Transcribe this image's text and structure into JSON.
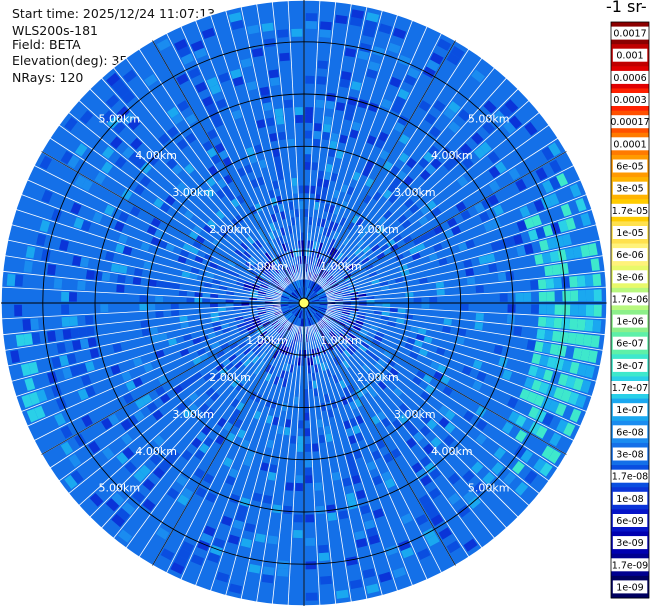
{
  "info": {
    "start_time": "Start time: 2025/12/24 11:07:13",
    "instrument": "WLS200s-181",
    "field": "Field: BETA",
    "elevation": "Elevation(deg): 35.00",
    "nrays": "NRays: 120"
  },
  "colorbar": {
    "title": "-1 sr-",
    "labels": [
      "0.0017",
      "0.001",
      "0.0006",
      "0.0003",
      "0.00017",
      "0.0001",
      "6e-05",
      "3e-05",
      "1.7e-05",
      "1e-05",
      "6e-06",
      "3e-06",
      "1.7e-06",
      "1e-06",
      "6e-07",
      "3e-07",
      "1.7e-07",
      "1e-07",
      "6e-08",
      "3e-08",
      "1.7e-08",
      "1e-08",
      "6e-09",
      "3e-09",
      "1.7e-09",
      "1e-09"
    ],
    "colors": [
      "#8b0000",
      "#c00000",
      "#e00000",
      "#ff2000",
      "#ff5000",
      "#ff7a00",
      "#ff9a00",
      "#ffb300",
      "#ffcc00",
      "#ffe14d",
      "#fff27a",
      "#e8f96a",
      "#b8f87e",
      "#8cf08a",
      "#5ef0a8",
      "#3ee8cc",
      "#2ad0e8",
      "#1aa8f0",
      "#1a8cf0",
      "#1470e8",
      "#0a4ee0",
      "#0a34d8",
      "#0614c8",
      "#0000b0",
      "#000090",
      "#000060"
    ]
  },
  "chart_data": {
    "type": "heatmap",
    "projection": "polar PPI scan",
    "field": "BETA",
    "elevation_deg": 35.0,
    "n_rays": 120,
    "range_rings_km": [
      1,
      2,
      3,
      4,
      5
    ],
    "range_ring_labels": [
      "1.00km",
      "2.00km",
      "3.00km",
      "4.00km",
      "5.00km"
    ],
    "max_range_km": 5.8,
    "colorscale": "log",
    "value_range": [
      1e-09,
      0.0017
    ],
    "dominant_value": 3e-08,
    "enhanced_sector": {
      "azimuth_deg": [
        60,
        135
      ],
      "range_km": [
        4.5,
        5.8
      ],
      "value": 3e-07
    }
  }
}
